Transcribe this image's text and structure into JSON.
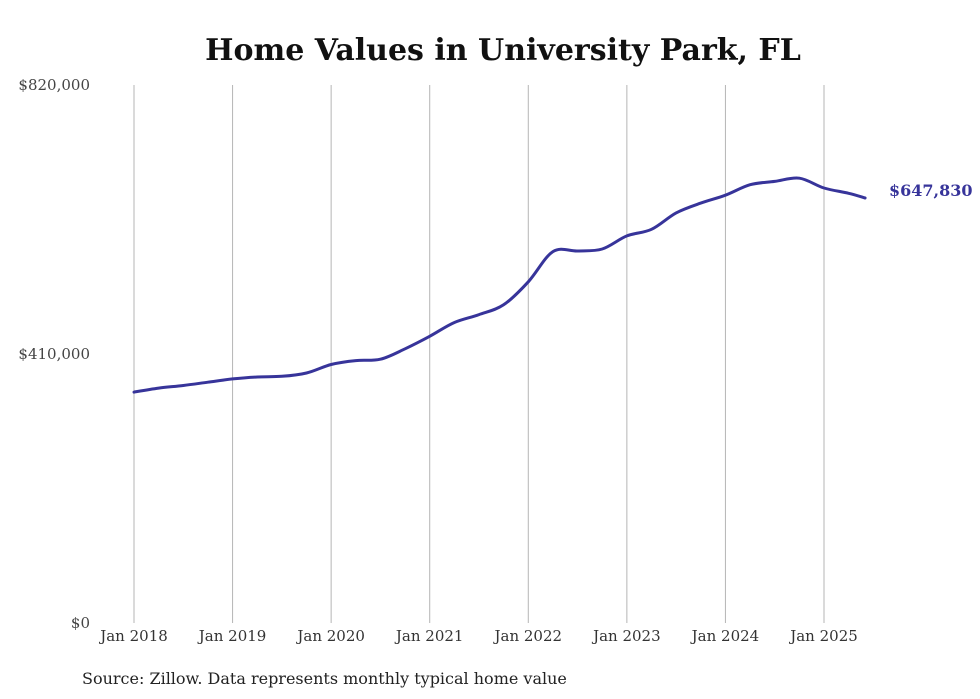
{
  "chart_data": {
    "type": "line",
    "title": "Home Values in University Park, FL",
    "xlabel": "",
    "ylabel": "",
    "source_note": "Source: Zillow. Data represents monthly typical home value",
    "ylim": [
      0,
      820000
    ],
    "y_ticks": [
      "$0",
      "$410,000",
      "$820,000"
    ],
    "x_ticks": [
      "Jan 2018",
      "Jan 2019",
      "Jan 2020",
      "Jan 2021",
      "Jan 2022",
      "Jan 2023",
      "Jan 2024",
      "Jan 2025"
    ],
    "grid": "vertical",
    "line_color": "#37349a",
    "end_label": "$647,830",
    "series": [
      {
        "x": [
          "2018-01",
          "2018-04",
          "2018-07",
          "2018-10",
          "2019-01",
          "2019-04",
          "2019-07",
          "2019-10",
          "2020-01",
          "2020-04",
          "2020-07",
          "2020-10",
          "2021-01",
          "2021-04",
          "2021-07",
          "2021-10",
          "2022-01",
          "2022-04",
          "2022-07",
          "2022-10",
          "2023-01",
          "2023-04",
          "2023-07",
          "2023-10",
          "2024-01",
          "2024-04",
          "2024-07",
          "2024-10",
          "2025-01",
          "2025-04",
          "2025-06"
        ],
        "values": [
          352000,
          358000,
          362000,
          367000,
          372000,
          375000,
          376000,
          381000,
          394000,
          400000,
          402000,
          418000,
          437000,
          458000,
          470000,
          485000,
          520000,
          566000,
          567000,
          570000,
          590000,
          600000,
          625000,
          640000,
          652000,
          668000,
          673000,
          678000,
          663000,
          655000,
          647830
        ]
      }
    ]
  }
}
